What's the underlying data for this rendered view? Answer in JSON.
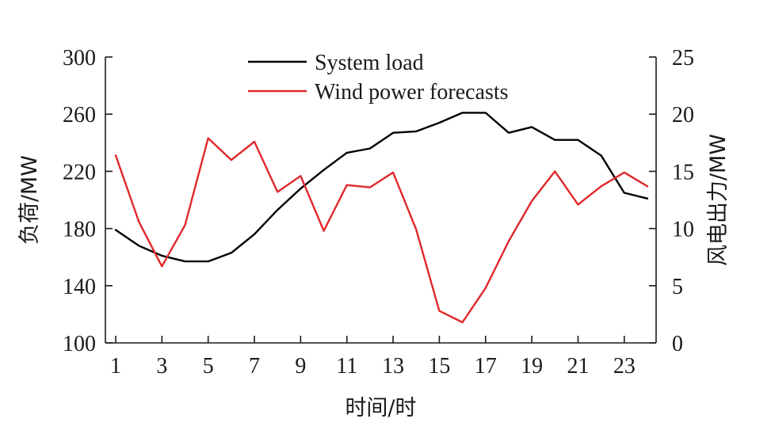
{
  "chart_data": {
    "type": "line",
    "title": "",
    "xlabel": "时间/时",
    "ylabel_left": "负荷/MW",
    "ylabel_right": "风电出力/MW",
    "x": [
      1,
      2,
      3,
      4,
      5,
      6,
      7,
      8,
      9,
      10,
      11,
      12,
      13,
      14,
      15,
      16,
      17,
      18,
      19,
      20,
      21,
      22,
      23,
      24
    ],
    "x_tick_labels": [
      "1",
      "3",
      "5",
      "7",
      "9",
      "11",
      "13",
      "15",
      "17",
      "19",
      "21",
      "23"
    ],
    "x_ticks": [
      1,
      3,
      5,
      7,
      9,
      11,
      13,
      15,
      17,
      19,
      21,
      23
    ],
    "y_left_ticks": [
      "100",
      "140",
      "180",
      "220",
      "260",
      "300"
    ],
    "y_right_ticks": [
      "0",
      "5",
      "10",
      "15",
      "20",
      "25"
    ],
    "y_left_lim": [
      100,
      300
    ],
    "y_right_lim": [
      0,
      25
    ],
    "x_lim": [
      1,
      24
    ],
    "grid": false,
    "legend_position": "top-center",
    "series": [
      {
        "name": "System load",
        "axis": "left",
        "color": "#000000",
        "values": [
          179,
          168,
          161,
          157,
          157,
          163,
          176,
          193,
          208,
          221,
          233,
          236,
          247,
          248,
          254,
          261,
          261,
          247,
          251,
          242,
          242,
          231,
          205,
          201
        ]
      },
      {
        "name": "Wind power forecasts",
        "axis": "right",
        "color": "#e0282a",
        "values": [
          16.4,
          10.6,
          6.7,
          10.3,
          17.9,
          16.0,
          17.6,
          13.2,
          14.6,
          9.8,
          13.8,
          13.6,
          14.9,
          9.9,
          2.8,
          1.8,
          4.8,
          8.9,
          12.4,
          15.0,
          12.1,
          13.7,
          14.9,
          13.7
        ]
      }
    ]
  }
}
